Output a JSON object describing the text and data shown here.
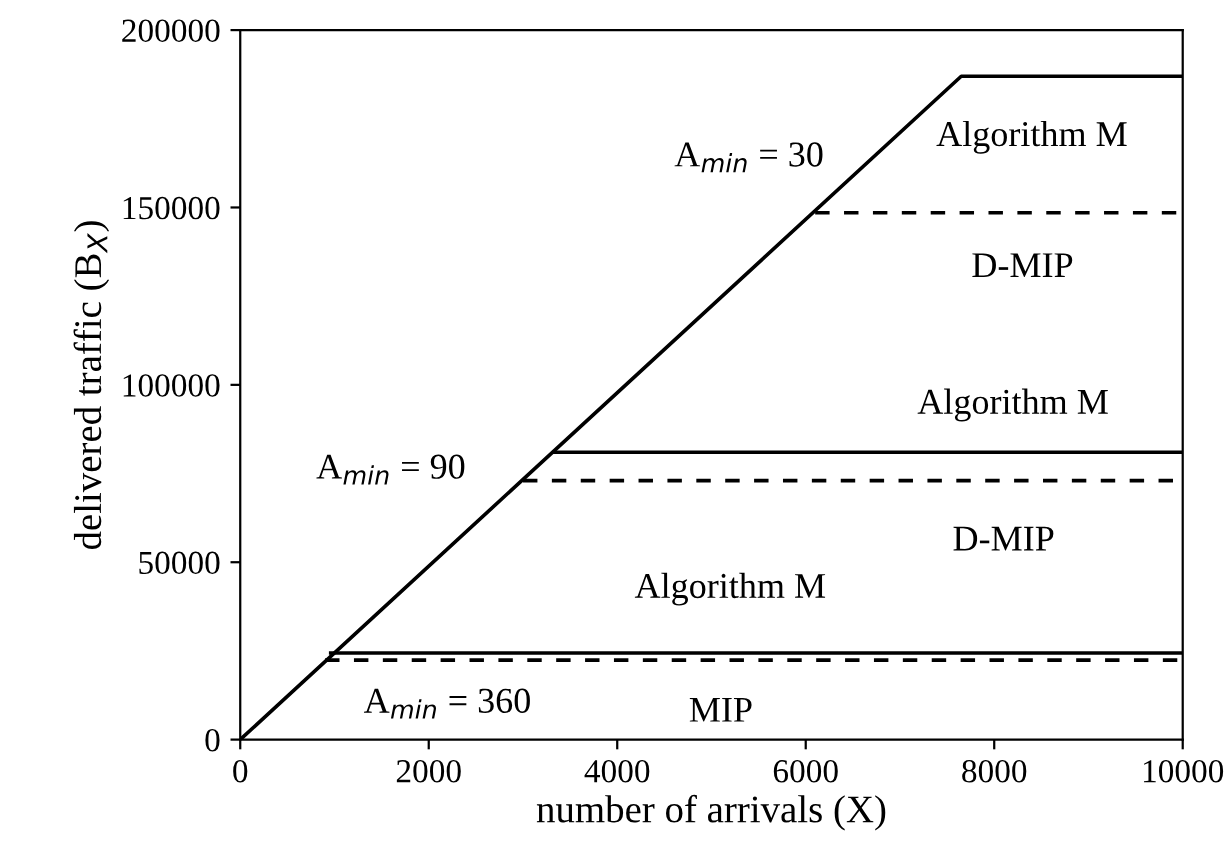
{
  "chart_data": {
    "type": "line",
    "xlabel": "number of arrivals (X)",
    "ylabel": "delivered traffic (B$_{X}$)",
    "xlim": [
      0,
      10000
    ],
    "xticks": [
      0,
      2000,
      4000,
      6000,
      8000,
      10000
    ],
    "ylim": [
      0,
      200000
    ],
    "yticks": [
      0,
      50000,
      100000,
      150000,
      200000
    ],
    "grid": false,
    "legend": false,
    "marker": "none",
    "series": [
      {
        "name": "Algorithm M",
        "color": "#000000",
        "line_style": "solid",
        "x": [
          0,
          7650,
          10000
        ],
        "values": [
          0,
          187000,
          187000
        ]
      },
      {
        "name": "D-MIP",
        "color": "#000000",
        "line_style": "dashed",
        "x": [
          6100,
          10000
        ],
        "values": [
          148500,
          148500
        ]
      },
      {
        "name": "Algorithm M",
        "color": "#000000",
        "line_style": "solid",
        "x": [
          3330,
          10000
        ],
        "values": [
          81000,
          81000
        ]
      },
      {
        "name": "D-MIP",
        "color": "#000000",
        "line_style": "dashed",
        "x": [
          3000,
          10000
        ],
        "values": [
          73000,
          73000
        ]
      },
      {
        "name": "Algorithm M",
        "color": "#000000",
        "line_style": "solid",
        "x": [
          960,
          10000
        ],
        "values": [
          24400,
          24400
        ]
      },
      {
        "name": "MIP",
        "color": "#000000",
        "line_style": "dashed",
        "x": [
          900,
          10000
        ],
        "values": [
          22400,
          22400
        ]
      }
    ],
    "annotations": [
      "A$_{min}$ = 30",
      "A$_{min}$ = 90",
      "A$_{min}$ = 360"
    ]
  }
}
